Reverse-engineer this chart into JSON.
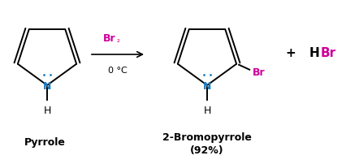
{
  "bg_color": "#ffffff",
  "figsize": [
    4.42,
    2.03
  ],
  "dpi": 100,
  "n_color": "#1a7abf",
  "br_color": "#cc0099",
  "black": "#000000",
  "arrow_above": "Br₂",
  "arrow_below": "0 °C",
  "label_pyrrole": "Pyrrole",
  "label_product": "2-Bromopyrrole",
  "label_yield": "(92%)",
  "plus_sign": "+",
  "lw": 1.4,
  "r": 0.55,
  "dot_r": 0.015,
  "dot_sep": 0.055
}
